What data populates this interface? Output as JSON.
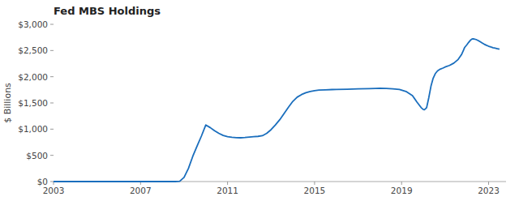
{
  "chart_data": {
    "type": "line",
    "title": "Fed MBS Holdings",
    "ylabel": "$ Billions",
    "x": [
      2003.0,
      2004.0,
      2005.0,
      2006.0,
      2007.0,
      2008.0,
      2008.6,
      2008.8,
      2009.0,
      2009.2,
      2009.4,
      2009.6,
      2009.8,
      2010.0,
      2010.2,
      2010.4,
      2010.6,
      2010.8,
      2011.0,
      2011.2,
      2011.4,
      2011.6,
      2011.8,
      2012.0,
      2012.2,
      2012.4,
      2012.6,
      2012.8,
      2013.0,
      2013.2,
      2013.4,
      2013.6,
      2013.8,
      2014.0,
      2014.2,
      2014.4,
      2014.6,
      2014.8,
      2015.0,
      2015.2,
      2015.5,
      2015.8,
      2016.0,
      2016.5,
      2017.0,
      2017.5,
      2017.8,
      2018.0,
      2018.3,
      2018.6,
      2018.9,
      2019.2,
      2019.5,
      2019.7,
      2019.9,
      2020.0,
      2020.05,
      2020.15,
      2020.25,
      2020.35,
      2020.45,
      2020.55,
      2020.65,
      2020.75,
      2020.9,
      2021.0,
      2021.2,
      2021.4,
      2021.6,
      2021.75,
      2021.85,
      2021.9,
      2022.0,
      2022.08,
      2022.15,
      2022.22,
      2022.28,
      2022.33,
      2022.42,
      2022.5,
      2022.6,
      2022.7,
      2022.8,
      2022.9,
      2023.0,
      2023.1,
      2023.2,
      2023.3,
      2023.4,
      2023.5
    ],
    "values": [
      0,
      0,
      0,
      0,
      0,
      0,
      0,
      5,
      80,
      250,
      480,
      680,
      870,
      1080,
      1030,
      970,
      920,
      880,
      858,
      845,
      838,
      835,
      840,
      848,
      855,
      862,
      875,
      920,
      990,
      1080,
      1180,
      1300,
      1420,
      1530,
      1610,
      1660,
      1695,
      1720,
      1735,
      1745,
      1750,
      1755,
      1758,
      1762,
      1768,
      1772,
      1776,
      1778,
      1775,
      1770,
      1758,
      1720,
      1640,
      1520,
      1410,
      1375,
      1370,
      1410,
      1600,
      1820,
      1970,
      2060,
      2110,
      2140,
      2165,
      2185,
      2215,
      2260,
      2330,
      2420,
      2510,
      2560,
      2610,
      2655,
      2690,
      2715,
      2725,
      2720,
      2710,
      2695,
      2670,
      2645,
      2620,
      2600,
      2582,
      2568,
      2555,
      2545,
      2535,
      2525
    ],
    "color": "#1a6ebd",
    "xlim": [
      2003.0,
      2023.8
    ],
    "xticks": [
      2003,
      2007,
      2011,
      2015,
      2019,
      2023
    ],
    "ylim": [
      0,
      3000
    ],
    "yticks": [
      {
        "value": 0,
        "label": "$0"
      },
      {
        "value": 500,
        "label": "$500"
      },
      {
        "value": 1000,
        "label": "$1,000"
      },
      {
        "value": 1500,
        "label": "$1,500"
      },
      {
        "value": 2000,
        "label": "$2,000"
      },
      {
        "value": 2500,
        "label": "$2,500"
      },
      {
        "value": 3000,
        "label": "$3,000"
      }
    ],
    "grid": false
  }
}
